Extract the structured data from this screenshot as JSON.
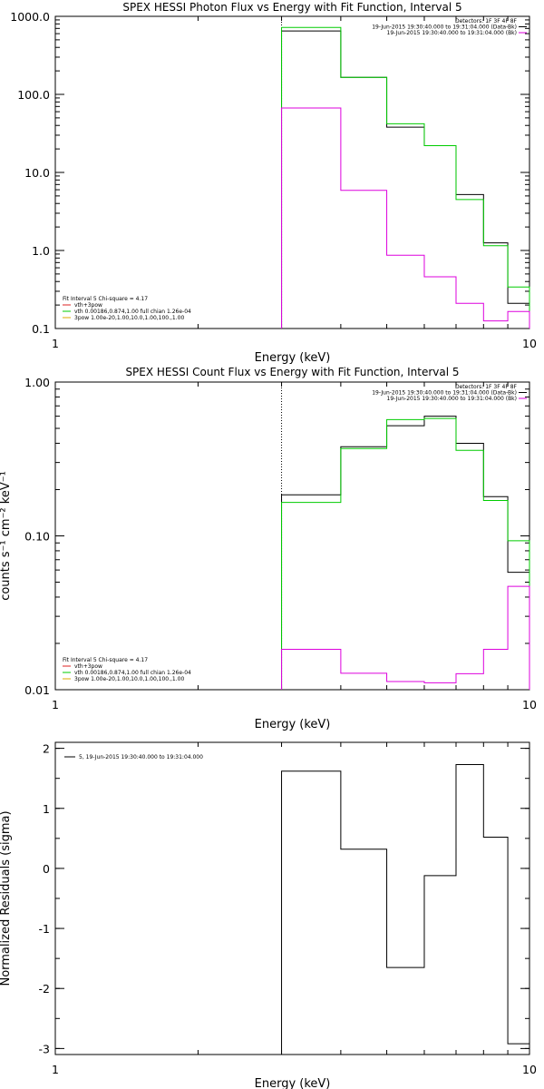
{
  "chart_data": [
    {
      "type": "line",
      "panel": "photon",
      "title": "SPEX HESSI Photon Flux vs Energy with Fit Function, Interval 5",
      "xlabel": "Energy (keV)",
      "ylabel": "",
      "xscale": "log",
      "yscale": "log",
      "xlim": [
        1,
        10
      ],
      "ylim": [
        0.1,
        1000
      ],
      "xticks": [
        {
          "value": 1,
          "label": "1"
        },
        {
          "value": 10,
          "label": "10"
        }
      ],
      "yticks": [
        {
          "value": 1000,
          "label": "1000.0"
        },
        {
          "value": 100,
          "label": "100.0"
        },
        {
          "value": 10,
          "label": "10.0"
        },
        {
          "value": 1,
          "label": "1.0"
        },
        {
          "value": 0.1,
          "label": "0.1"
        }
      ],
      "vline": 3,
      "edges": [
        3,
        4,
        5,
        6,
        7,
        8,
        9,
        10
      ],
      "header": [
        "Detectors: 1F 3F 4F 8F",
        "19-Jun-2015 19:30:40.000 to 19:31:04.000 (Data-Bk)",
        "19-Jun-2015 19:30:40.000 to 19:31:04.000 (Bk)"
      ],
      "fit_label": "Fit Interval 5   Chi-square = 4.17",
      "series": [
        {
          "name": "",
          "color": "#000000",
          "values": [
            650,
            165,
            38,
            22,
            5.2,
            1.25,
            0.21
          ]
        },
        {
          "name": "",
          "color": "#00cc00",
          "values": [
            720,
            165,
            42,
            22,
            4.5,
            1.15,
            0.34
          ]
        },
        {
          "name": "",
          "color": "#dd00dd",
          "values": [
            67,
            5.9,
            0.87,
            0.46,
            0.21,
            0.125,
            0.165
          ]
        }
      ],
      "legend": [
        {
          "label": "vth+3pow",
          "color": "#dd2222"
        },
        {
          "label": "vth 0.00186,0.874,1.00  full chian 1.26e-04",
          "color": "#00cc00"
        },
        {
          "label": "3pow 1.00e-20,1.00,10.0,1.00,100.,1.00",
          "color": "#ddaa00"
        }
      ]
    },
    {
      "type": "line",
      "panel": "count",
      "title": "SPEX HESSI Count Flux vs Energy with Fit Function, Interval 5",
      "xlabel": "Energy (keV)",
      "ylabel": "counts s⁻¹ cm⁻² keV⁻¹",
      "xscale": "log",
      "yscale": "log",
      "xlim": [
        1,
        10
      ],
      "ylim": [
        0.01,
        1
      ],
      "xticks": [
        {
          "value": 1,
          "label": "1"
        },
        {
          "value": 10,
          "label": "10"
        }
      ],
      "yticks": [
        {
          "value": 1,
          "label": "1.00"
        },
        {
          "value": 0.1,
          "label": "0.10"
        },
        {
          "value": 0.01,
          "label": "0.01"
        }
      ],
      "vline": 3,
      "edges": [
        3,
        4,
        5,
        6,
        7,
        8,
        9,
        10
      ],
      "header": [
        "Detectors: 1F 3F 4F 8F",
        "19-Jun-2015 19:30:40.000 to 19:31:04.000 (Data-Bk)",
        "19-Jun-2015 19:30:40.000 to 19:31:04.000 (Bk)"
      ],
      "fit_label": "Fit Interval 5   Chi-square = 4.17",
      "series": [
        {
          "name": "",
          "color": "#000000",
          "values": [
            0.185,
            0.38,
            0.52,
            0.6,
            0.4,
            0.18,
            0.058
          ]
        },
        {
          "name": "",
          "color": "#00cc00",
          "values": [
            0.165,
            0.37,
            0.57,
            0.58,
            0.36,
            0.17,
            0.093
          ]
        },
        {
          "name": "",
          "color": "#dd00dd",
          "values": [
            0.0183,
            0.0128,
            0.0113,
            0.0111,
            0.0127,
            0.0183,
            0.047
          ]
        }
      ],
      "legend": [
        {
          "label": "vth+3pow",
          "color": "#dd2222"
        },
        {
          "label": "vth 0.00186,0.874,1.00  full chian 1.26e-04",
          "color": "#00cc00"
        },
        {
          "label": "3pow 1.00e-20,1.00,10.0,1.00,100.,1.00",
          "color": "#ddaa00"
        }
      ]
    },
    {
      "type": "line",
      "panel": "residuals",
      "title": "",
      "xlabel": "Energy (keV)",
      "ylabel": "Normalized Residuals (sigma)",
      "xscale": "log",
      "yscale": "linear",
      "xlim": [
        1,
        10
      ],
      "ylim": [
        -3.1,
        2.1
      ],
      "xticks": [
        {
          "value": 1,
          "label": "1"
        },
        {
          "value": 10,
          "label": "10"
        }
      ],
      "yticks": [
        {
          "value": 2,
          "label": "2"
        },
        {
          "value": 1,
          "label": "1"
        },
        {
          "value": 0,
          "label": "0"
        },
        {
          "value": -1,
          "label": "-1"
        },
        {
          "value": -2,
          "label": "-2"
        },
        {
          "value": -3,
          "label": "-3"
        }
      ],
      "edges": [
        3,
        4,
        5,
        6,
        7,
        8,
        9,
        10
      ],
      "series": [
        {
          "name": "5, 19-Jun-2015 19:30:40.000 to 19:31:04.000",
          "color": "#000000",
          "values": [
            1.62,
            0.32,
            -1.65,
            -0.12,
            1.73,
            0.52,
            -2.92
          ]
        }
      ],
      "legend": [
        {
          "label": "5, 19-Jun-2015 19:30:40.000 to 19:31:04.000",
          "color": "#000000"
        }
      ]
    }
  ]
}
